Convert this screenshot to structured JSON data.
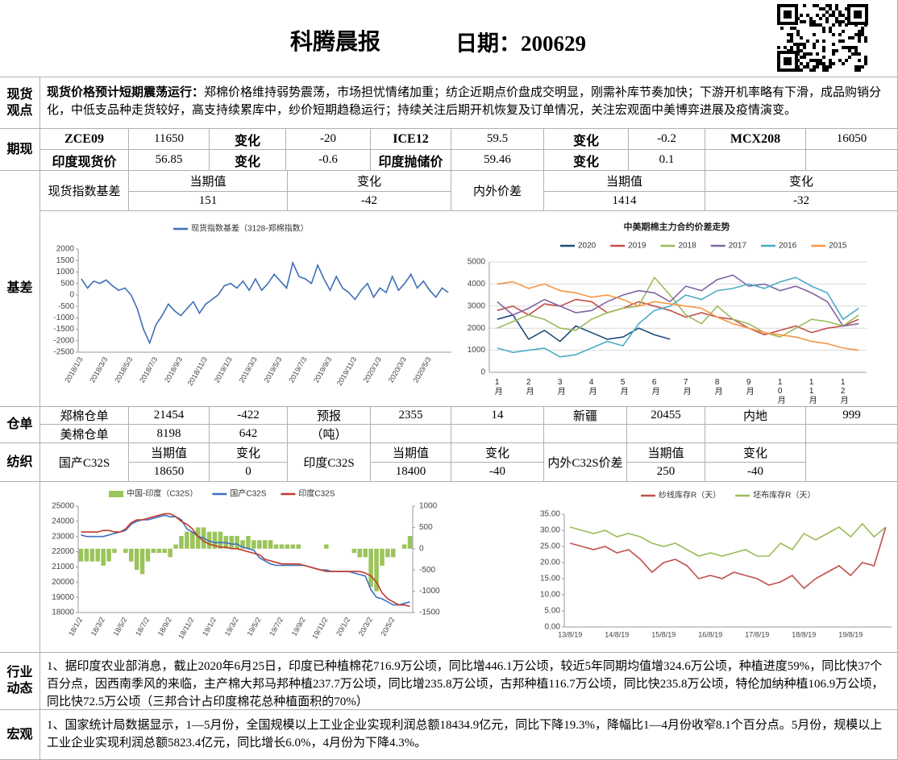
{
  "header": {
    "title": "科腾晨报",
    "date": "日期：200629"
  },
  "spot_view": {
    "label": "现货观点",
    "lead": "现货价格预计短期震荡运行：",
    "text": "郑棉价格维持弱势震荡，市场担忧情绪加重；纺企近期点价盘成交明显，刚需补库节奏加快；下游开机率略有下滑，成品购销分化，中低支品种走货较好，高支持续累库中，纱价短期趋稳运行；持续关注后期开机恢复及订单情况，关注宏观面中美博弈进展及疫情演变。"
  },
  "futures": {
    "label": "期现",
    "rows": [
      [
        "ZCE09",
        11650,
        "变化",
        -20,
        "ICE12",
        59.5,
        "变化",
        -0.2,
        "MCX208",
        16050
      ],
      [
        "印度现货价",
        56.85,
        "变化",
        -0.6,
        "印度抛储价",
        59.46,
        "变化",
        0.1
      ]
    ]
  },
  "basis": {
    "label": "基差",
    "left_label": "现货指数基差",
    "left_headers": [
      "当期值",
      "变化"
    ],
    "left_values": [
      151,
      -42
    ],
    "right_label": "内外价差",
    "right_headers": [
      "当期值",
      "变化"
    ],
    "right_values": [
      1414,
      -32
    ]
  },
  "warehouse": {
    "label": "仓单",
    "rows": [
      [
        "郑棉仓单",
        21454,
        -422,
        "预报",
        2355,
        14,
        "新疆",
        20455,
        "内地",
        999
      ],
      [
        "美棉仓单",
        8198,
        642,
        "（吨）"
      ]
    ]
  },
  "textile": {
    "label": "纺织",
    "groups": [
      {
        "name": "国产C32S",
        "headers": [
          "当期值",
          "变化"
        ],
        "values": [
          18650,
          0
        ]
      },
      {
        "name": "印度C32S",
        "headers": [
          "当期值",
          "变化"
        ],
        "values": [
          18400,
          -40
        ]
      },
      {
        "name": "内外C32S价差",
        "headers": [
          "当期值",
          "变化"
        ],
        "values": [
          250,
          -40
        ]
      }
    ]
  },
  "industry": {
    "label": "行业动态",
    "text": "1、据印度农业部消息，截止2020年6月25日，印度已种植棉花716.9万公顷，同比增446.1万公顷，较近5年同期均值增324.6万公顷，种植进度59%，同比快37个百分点，因西南季风的来临，主产棉大邦马邦种植237.7万公顷，同比增235.8万公顷，古邦种植116.7万公顷，同比快235.8万公顷，特伦加纳种植106.9万公顷，同比快72.5万公顷（三邦合计占印度棉花总种植面积的70%）"
  },
  "macro": {
    "label": "宏观",
    "text": "1、国家统计局数据显示，1—5月份，全国规模以上工业企业实现利润总额18434.9亿元，同比下降19.3%，降幅比1—4月份收窄8.1个百分点。5月份，规模以上工业企业实现利润总额5823.4亿元，同比增长6.0%，4月份为下降4.3%。"
  },
  "chart_data": [
    {
      "type": "line",
      "grid": false,
      "categories": [
        "2018/1/3",
        null,
        null,
        null,
        "2018/3/3",
        null,
        null,
        null,
        "2018/5/3",
        null,
        null,
        null,
        "2018/7/3",
        null,
        null,
        null,
        "2018/9/3",
        null,
        null,
        null,
        "2018/11/3",
        null,
        null,
        null,
        "2019/1/3",
        null,
        null,
        null,
        "2019/3/3",
        null,
        null,
        null,
        "2019/5/3",
        null,
        null,
        null,
        "2019/7/3",
        null,
        null,
        null,
        "2019/9/3",
        null,
        null,
        null,
        "2019/11/3",
        null,
        null,
        null,
        "2020/1/3",
        null,
        null,
        null,
        "2020/3/3",
        null,
        null,
        null,
        "2020/5/3",
        null,
        null,
        null
      ],
      "series": [
        {
          "name": "现货指数基差（3128-郑棉指数）",
          "color": "#3f6fb5",
          "values": [
            700,
            300,
            600,
            500,
            650,
            400,
            200,
            300,
            0,
            -600,
            -1500,
            -2100,
            -1300,
            -900,
            -400,
            -700,
            -900,
            -600,
            -300,
            -800,
            -400,
            -200,
            0,
            400,
            500,
            300,
            600,
            200,
            700,
            200,
            500,
            900,
            600,
            300,
            1400,
            800,
            700,
            500,
            1300,
            700,
            200,
            800,
            300,
            100,
            -200,
            200,
            500,
            -100,
            300,
            100,
            800,
            200,
            500,
            900,
            300,
            600,
            200,
            -100,
            300,
            100
          ]
        }
      ],
      "ylim": [
        -2500,
        2000
      ],
      "yticks": [
        -2500,
        -2000,
        -1500,
        -1000,
        -500,
        0,
        500,
        1000,
        1500,
        2000
      ]
    },
    {
      "type": "line",
      "title": "中美期棉主力合约价差走势",
      "grid": true,
      "categories": [
        "1月",
        null,
        "2月",
        null,
        "3月",
        null,
        "4月",
        null,
        "5月",
        null,
        "6月",
        null,
        "7月",
        null,
        "8月",
        null,
        "9月",
        null,
        "10月",
        null,
        "11月",
        null,
        "12月",
        null
      ],
      "series": [
        {
          "name": "2020",
          "color": "#1f4e79",
          "values": [
            2400,
            2600,
            1500,
            1900,
            1400,
            2100,
            1800,
            1500,
            1600,
            2000,
            1700,
            1500,
            null,
            null,
            null,
            null,
            null,
            null,
            null,
            null,
            null,
            null,
            null,
            null
          ]
        },
        {
          "name": "2019",
          "color": "#c0504d",
          "values": [
            2800,
            3000,
            2600,
            3100,
            3000,
            3300,
            3200,
            2700,
            2900,
            3200,
            3000,
            2800,
            2500,
            2700,
            2500,
            2400,
            2000,
            1700,
            1900,
            2100,
            1800,
            2000,
            2100,
            2400
          ]
        },
        {
          "name": "2018",
          "color": "#9bbb59",
          "values": [
            2000,
            2300,
            2600,
            2400,
            2000,
            1900,
            2400,
            2700,
            2900,
            3000,
            4300,
            3500,
            2600,
            2200,
            3000,
            2400,
            2200,
            1800,
            1600,
            2000,
            2400,
            2300,
            2100,
            2600
          ]
        },
        {
          "name": "2017",
          "color": "#8064a2",
          "values": [
            3200,
            2600,
            2900,
            3300,
            3000,
            2700,
            2800,
            3200,
            3500,
            3700,
            3600,
            3200,
            3900,
            3700,
            4200,
            4400,
            3900,
            4000,
            3700,
            3900,
            3600,
            3200,
            2100,
            2200
          ]
        },
        {
          "name": "2016",
          "color": "#4bacc6",
          "values": [
            1100,
            900,
            1000,
            1100,
            700,
            800,
            1100,
            1400,
            1200,
            2200,
            2800,
            3000,
            3500,
            3300,
            3700,
            3800,
            4000,
            3800,
            4100,
            4300,
            3900,
            3600,
            2400,
            2900
          ]
        },
        {
          "name": "2015",
          "color": "#f79646",
          "values": [
            4000,
            4100,
            3800,
            4000,
            3700,
            3600,
            3400,
            3500,
            3300,
            3000,
            3200,
            3100,
            3000,
            2900,
            2500,
            2200,
            2000,
            1800,
            1700,
            1600,
            1400,
            1300,
            1100,
            1000
          ]
        }
      ],
      "ylim": [
        0,
        5000
      ],
      "yticks": [
        0,
        1000,
        2000,
        3000,
        4000,
        5000
      ]
    },
    {
      "type": "combo",
      "grid": false,
      "categories": [
        "18/1/2",
        null,
        null,
        null,
        "18/3/2",
        null,
        null,
        null,
        "18/5/2",
        null,
        null,
        null,
        "18/7/2",
        null,
        null,
        null,
        "18/9/2",
        null,
        null,
        null,
        "18/11/2",
        null,
        null,
        null,
        "19/1/2",
        null,
        null,
        null,
        "19/3/2",
        null,
        null,
        null,
        "19/5/2",
        null,
        null,
        null,
        "19/7/2",
        null,
        null,
        null,
        "19/9/2",
        null,
        null,
        null,
        "19/11/2",
        null,
        null,
        null,
        "20/1/2",
        null,
        null,
        null,
        "20/3/2",
        null,
        null,
        null,
        "20/5/2",
        null,
        null,
        null
      ],
      "series": [
        {
          "name": "中国-印度（C32S）",
          "kind": "bar",
          "axis": "y2",
          "color": "#9bc45a",
          "values": [
            -300,
            -300,
            -300,
            -300,
            -400,
            -300,
            -100,
            0,
            -100,
            -300,
            -500,
            -600,
            -300,
            -100,
            -100,
            -100,
            -200,
            100,
            300,
            400,
            400,
            500,
            500,
            400,
            400,
            400,
            300,
            300,
            300,
            200,
            300,
            200,
            200,
            200,
            200,
            100,
            100,
            100,
            100,
            100,
            0,
            0,
            0,
            0,
            100,
            0,
            0,
            0,
            0,
            -100,
            -200,
            -200,
            -900,
            -1000,
            -400,
            -200,
            -200,
            0,
            100,
            300
          ]
        },
        {
          "name": "国产C32S",
          "kind": "line",
          "color": "#3f6fbf",
          "values": [
            23100,
            23000,
            23000,
            23000,
            23000,
            23100,
            23200,
            23300,
            23400,
            23800,
            24000,
            24100,
            24100,
            24200,
            24300,
            24400,
            24300,
            24300,
            24100,
            23500,
            23300,
            23000,
            22900,
            22700,
            22600,
            22600,
            22600,
            22500,
            22500,
            22300,
            22200,
            22100,
            21600,
            21400,
            21200,
            21100,
            21100,
            21100,
            21100,
            21100,
            21100,
            21000,
            20900,
            20800,
            20800,
            20700,
            20700,
            20700,
            20700,
            20600,
            20500,
            20400,
            19500,
            19000,
            18900,
            18700,
            18500,
            18500,
            18600,
            18700
          ]
        },
        {
          "name": "印度C32S",
          "kind": "line",
          "color": "#c0392b",
          "values": [
            23300,
            23300,
            23300,
            23300,
            23400,
            23400,
            23300,
            23300,
            23500,
            23900,
            24100,
            24100,
            24200,
            24300,
            24400,
            24500,
            24500,
            24300,
            24000,
            23800,
            23500,
            23000,
            22700,
            22500,
            22400,
            22300,
            22300,
            22200,
            22200,
            22100,
            22000,
            21900,
            21800,
            21500,
            21400,
            21300,
            21200,
            21200,
            21200,
            21200,
            21100,
            21000,
            20900,
            20800,
            20700,
            20700,
            20700,
            20700,
            20700,
            20700,
            20700,
            20600,
            20400,
            20000,
            19300,
            18900,
            18700,
            18500,
            18500,
            18400
          ]
        }
      ],
      "ylim": [
        18000,
        25000
      ],
      "yticks": [
        18000,
        19000,
        20000,
        21000,
        22000,
        23000,
        24000,
        25000
      ],
      "y2lim": [
        -1500,
        1000
      ],
      "y2ticks": [
        -1500,
        -1000,
        -500,
        0,
        500,
        1000
      ]
    },
    {
      "type": "line",
      "grid": false,
      "categories": [
        "13/8/19",
        null,
        null,
        null,
        "14/8/19",
        null,
        null,
        null,
        "15/8/19",
        null,
        null,
        null,
        "16/8/19",
        null,
        null,
        null,
        "17/8/19",
        null,
        null,
        null,
        "18/8/19",
        null,
        null,
        null,
        "19/8/19",
        null,
        null,
        null
      ],
      "series": [
        {
          "name": "纱线库存R（天）",
          "color": "#c0504d",
          "values": [
            26,
            25,
            24,
            25,
            23,
            24,
            21,
            17,
            20,
            21,
            19,
            15,
            16,
            15,
            17,
            16,
            15,
            13,
            14,
            16,
            12,
            15,
            17,
            19,
            16,
            20,
            19,
            31
          ]
        },
        {
          "name": "坯布库存R（天）",
          "color": "#9bbb59",
          "values": [
            31,
            30,
            29,
            30,
            28,
            29,
            28,
            26,
            25,
            26,
            24,
            22,
            23,
            22,
            23,
            24,
            22,
            22,
            26,
            24,
            29,
            27,
            29,
            31,
            28,
            32,
            28,
            31
          ]
        }
      ],
      "ylim": [
        0,
        35
      ],
      "yticks": [
        {
          "value": 0,
          "label": "0.00"
        },
        {
          "value": 5,
          "label": "5.00"
        },
        {
          "value": 10,
          "label": "10.00"
        },
        {
          "value": 15,
          "label": "15.00"
        },
        {
          "value": 20,
          "label": "20.00"
        },
        {
          "value": 25,
          "label": "25.00"
        },
        {
          "value": 30,
          "label": "30.00"
        },
        {
          "value": 35,
          "label": "35.00"
        }
      ]
    }
  ]
}
